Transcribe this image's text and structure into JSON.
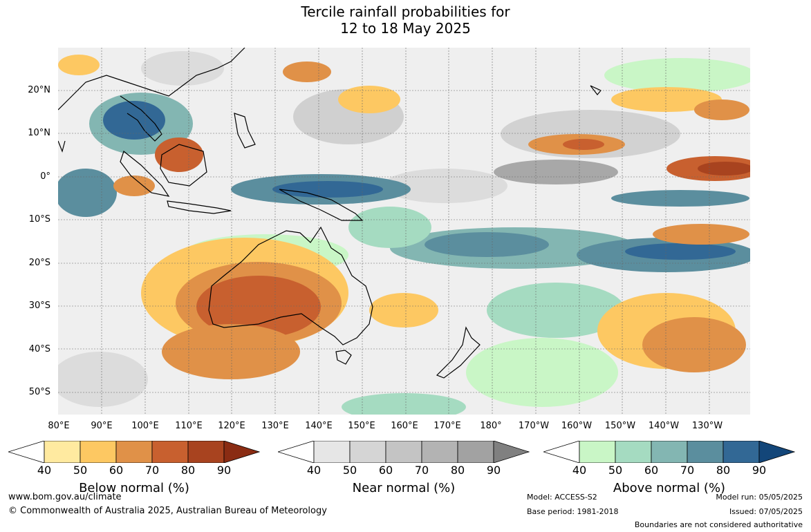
{
  "title": {
    "line1": "Tercile rainfall probabilities for",
    "line2": "12 to 18 May 2025"
  },
  "map": {
    "lat_labels": [
      "20°N",
      "10°N",
      "0°",
      "10°S",
      "20°S",
      "30°S",
      "40°S",
      "50°S"
    ],
    "lon_labels": [
      "80°E",
      "90°E",
      "100°E",
      "110°E",
      "120°E",
      "130°E",
      "140°E",
      "150°E",
      "160°E",
      "170°E",
      "180°",
      "170°W",
      "160°W",
      "150°W",
      "140°W",
      "130°W"
    ]
  },
  "colorbars": [
    {
      "label": "Below normal (%)",
      "ticks": [
        "40",
        "50",
        "60",
        "70",
        "80",
        "90"
      ],
      "colors": [
        "#ffffff",
        "#ffeaa0",
        "#fdc862",
        "#e09148",
        "#c8602f",
        "#a8431f",
        "#8a2c13"
      ]
    },
    {
      "label": "Near normal (%)",
      "ticks": [
        "40",
        "50",
        "60",
        "70",
        "80",
        "90"
      ],
      "colors": [
        "#ffffff",
        "#e6e6e6",
        "#d5d5d5",
        "#c4c4c4",
        "#b3b3b3",
        "#a2a2a2",
        "#808080"
      ]
    },
    {
      "label": "Above normal (%)",
      "ticks": [
        "40",
        "50",
        "60",
        "70",
        "80",
        "90"
      ],
      "colors": [
        "#ffffff",
        "#c9f6c6",
        "#a5dbc1",
        "#83b6b2",
        "#5b8e9e",
        "#326895",
        "#134679"
      ]
    }
  ],
  "footer": {
    "website": "www.bom.gov.au/climate",
    "copyright": "© Commonwealth of Australia 2025, Australian Bureau of Meteorology",
    "model": "Model: ACCESS-S2",
    "base_period": "Base period: 1981-2018",
    "model_run": "Model run: 05/05/2025",
    "issued": "Issued: 07/05/2025",
    "boundaries": "Boundaries are not considered authoritative"
  }
}
